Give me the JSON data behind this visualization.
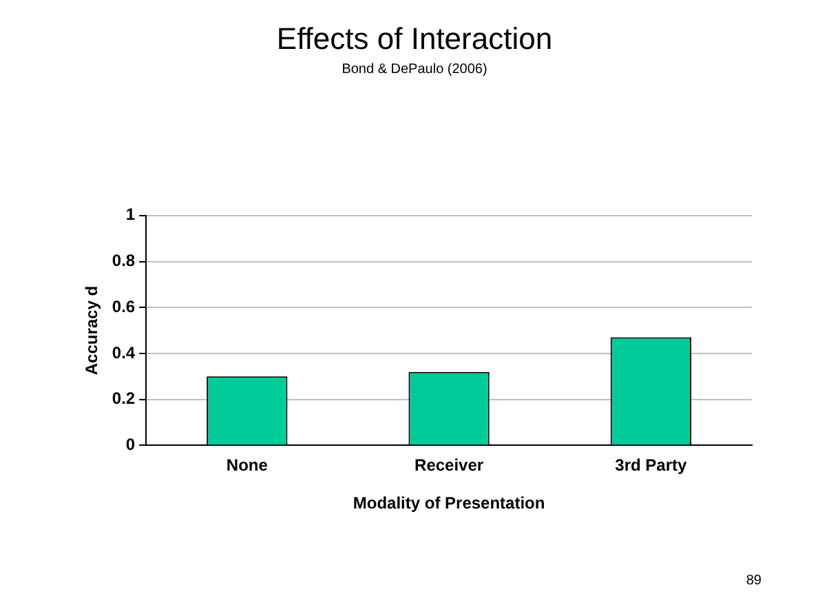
{
  "chart_data": {
    "type": "bar",
    "title": "Effects of Interaction",
    "subtitle": "Bond & DePaulo (2006)",
    "xlabel": "Modality of Presentation",
    "ylabel": "Accuracy d",
    "categories": [
      "None",
      "Receiver",
      "3rd Party"
    ],
    "values": [
      0.3,
      0.32,
      0.47
    ],
    "color": "#00cc99",
    "ylim": [
      0,
      1
    ],
    "yticks": [
      0,
      0.2,
      0.4,
      0.6,
      0.8,
      1
    ],
    "grid": "y",
    "legend": false,
    "annotations": [
      "89"
    ]
  }
}
